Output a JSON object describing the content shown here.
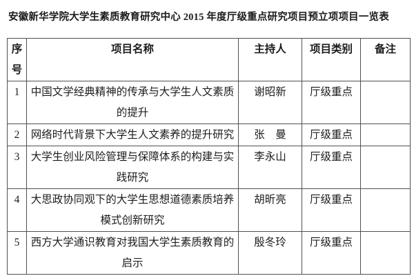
{
  "title": "安徽新华学院大学生素质教育研究中心 2015 年度厅级重点研究项目预立项项目一览表",
  "table": {
    "headers": {
      "no": "序号",
      "name": "项目名称",
      "leader": "主持人",
      "category": "项目类别",
      "note": "备注"
    },
    "rows": [
      {
        "no": "1",
        "name": "中国文学经典精神的传承与大学生人文素质的提升",
        "leader": "谢昭新",
        "category": "厅级重点",
        "note": ""
      },
      {
        "no": "2",
        "name": "网络时代背景下大学生人文素养的提升研究",
        "leader": "张　曼",
        "category": "厅级重点",
        "note": ""
      },
      {
        "no": "3",
        "name": "大学生创业风险管理与保障体系的构建与实践研究",
        "leader": "李永山",
        "category": "厅级重点",
        "note": ""
      },
      {
        "no": "4",
        "name": "大思政协同观下的大学生思想道德素质培养模式创新研究",
        "leader": "胡昕亮",
        "category": "厅级重点",
        "note": ""
      },
      {
        "no": "5",
        "name": "西方大学通识教育对我国大学生素质教育的启示",
        "leader": "殷冬玲",
        "category": "厅级重点",
        "note": ""
      }
    ]
  },
  "colors": {
    "border": "#4f4f4f",
    "text": "#1c1c1c",
    "background": "#ffffff"
  }
}
